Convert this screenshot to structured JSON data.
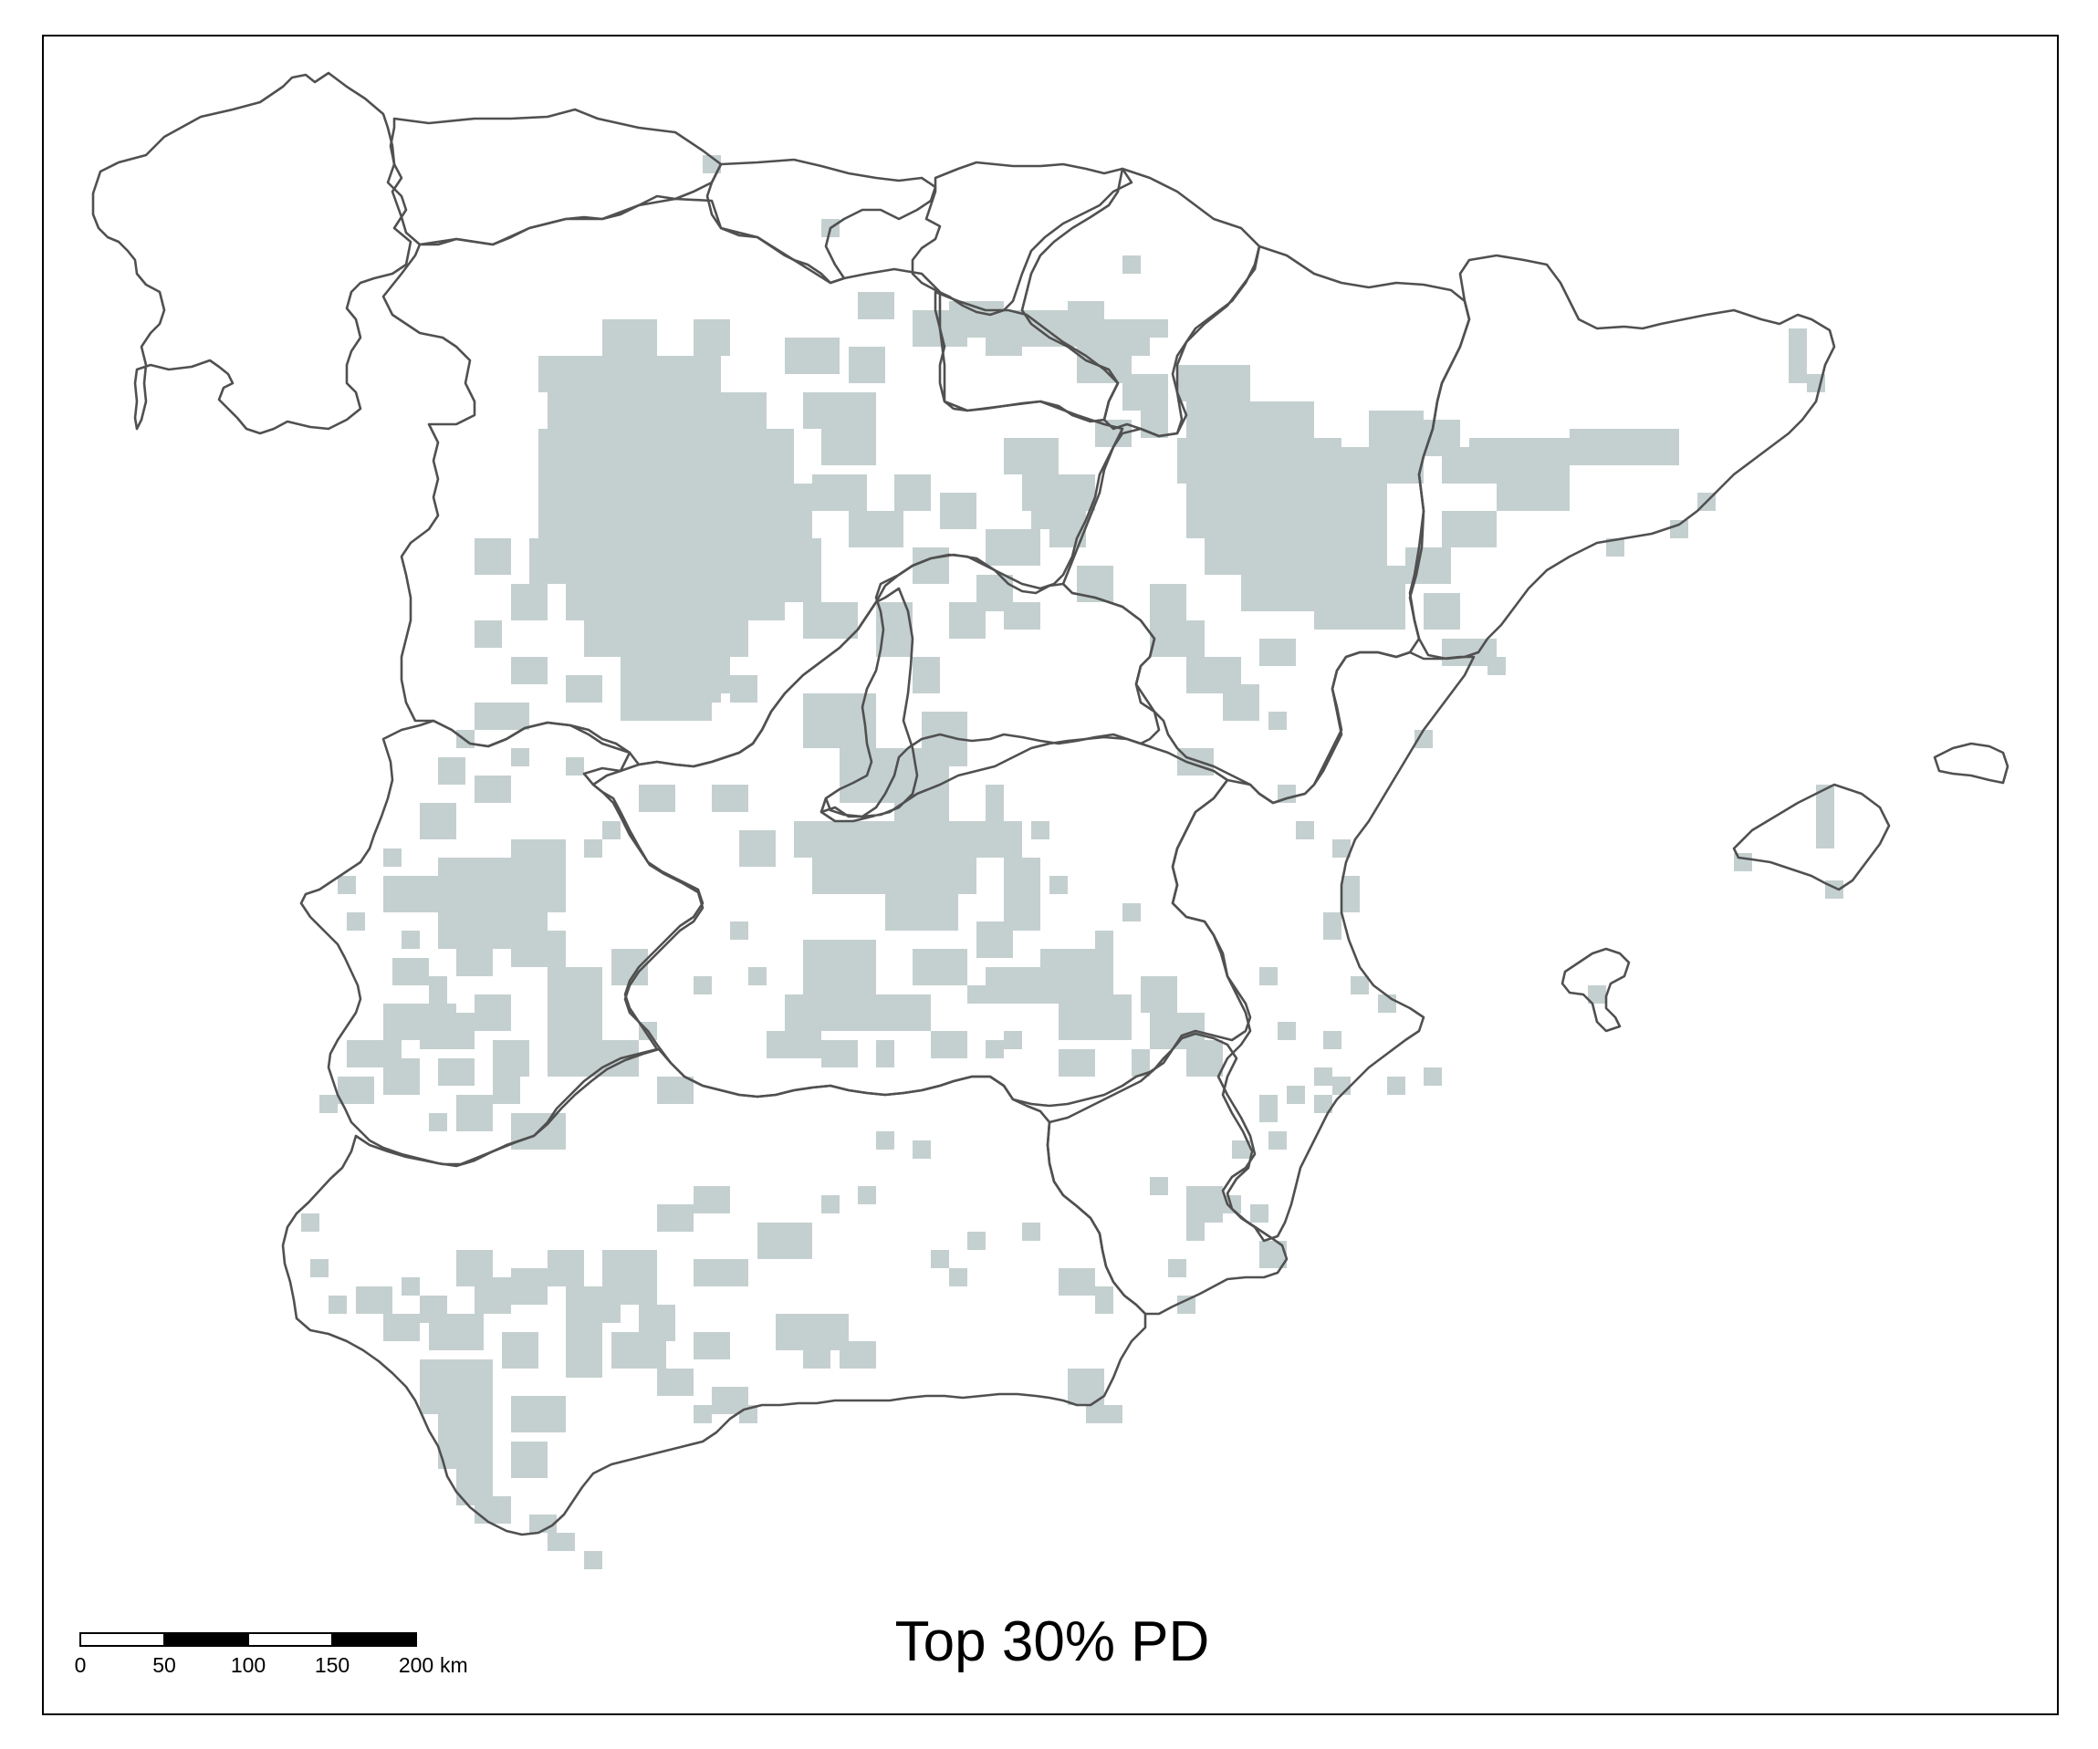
{
  "map": {
    "title": "Top 30% PD",
    "highlight_color": "#c4d0cf",
    "border_color": "#505050",
    "frame_color": "#000000",
    "regions": [
      "galicia",
      "asturias",
      "cantabria",
      "basque-country",
      "navarra",
      "la-rioja",
      "castilla-y-leon",
      "aragon",
      "catalonia",
      "madrid",
      "castilla-la-mancha",
      "valencia",
      "extremadura",
      "murcia",
      "andalusia",
      "balearic-islands"
    ]
  },
  "scale_bar": {
    "unit": "km",
    "ticks": [
      "0",
      "50",
      "100",
      "150",
      "200"
    ]
  }
}
